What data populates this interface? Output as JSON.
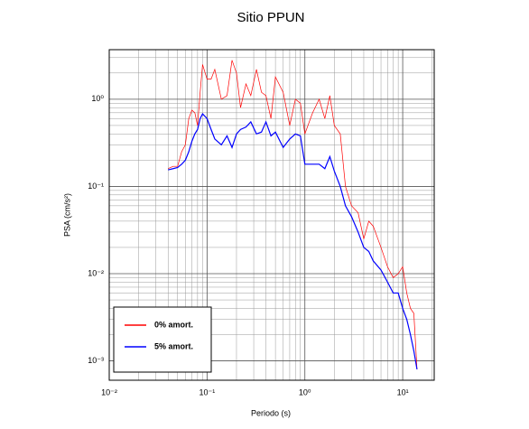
{
  "chart_data": {
    "type": "line",
    "title": "Sitio PPUN",
    "x_label": "Periodo (s)",
    "y_label": "PSA (cm/s²)",
    "log_x": true,
    "log_y": true,
    "grid": true,
    "minor_grid": true,
    "legend": "lower left",
    "xlim": [
      0.01,
      21
    ],
    "ylim": [
      0.0006,
      3.7
    ],
    "xticks": [
      {
        "value": 0.01,
        "label": "10⁻²"
      },
      {
        "value": 0.1,
        "label": "10⁻¹"
      },
      {
        "value": 1,
        "label": "10⁰"
      },
      {
        "value": 10,
        "label": "10¹"
      }
    ],
    "yticks": [
      {
        "value": 0.001,
        "label": "10⁻³"
      },
      {
        "value": 0.01,
        "label": "10⁻²"
      },
      {
        "value": 0.1,
        "label": "10⁻¹"
      },
      {
        "value": 1,
        "label": "10⁰"
      }
    ],
    "x": [
      0.04,
      0.045,
      0.05,
      0.055,
      0.06,
      0.065,
      0.07,
      0.075,
      0.08,
      0.085,
      0.09,
      0.1,
      0.11,
      0.12,
      0.14,
      0.16,
      0.18,
      0.2,
      0.22,
      0.25,
      0.28,
      0.32,
      0.36,
      0.4,
      0.45,
      0.5,
      0.6,
      0.7,
      0.8,
      0.9,
      1.0,
      1.2,
      1.4,
      1.6,
      1.8,
      2.0,
      2.3,
      2.6,
      3.0,
      3.5,
      4.0,
      4.5,
      5.0,
      6.0,
      7.0,
      8.0,
      9.0,
      10,
      11,
      12,
      13,
      14
    ],
    "series": [
      {
        "name": "0% amort.",
        "color": "#ff0000",
        "values": [
          0.16,
          0.17,
          0.17,
          0.25,
          0.3,
          0.6,
          0.75,
          0.7,
          0.5,
          1.2,
          2.5,
          1.7,
          1.7,
          2.2,
          1.0,
          1.1,
          2.8,
          2.0,
          0.8,
          1.5,
          1.1,
          2.2,
          1.2,
          1.1,
          0.6,
          1.8,
          1.2,
          0.5,
          1.0,
          0.9,
          0.4,
          0.7,
          1.0,
          0.6,
          1.1,
          0.5,
          0.4,
          0.1,
          0.06,
          0.05,
          0.025,
          0.04,
          0.035,
          0.02,
          0.012,
          0.009,
          0.01,
          0.012,
          0.006,
          0.004,
          0.0035,
          0.0008
        ]
      },
      {
        "name": "5% amort.",
        "color": "#0000ff",
        "values": [
          0.155,
          0.16,
          0.165,
          0.18,
          0.2,
          0.25,
          0.33,
          0.4,
          0.45,
          0.6,
          0.68,
          0.6,
          0.45,
          0.35,
          0.3,
          0.38,
          0.28,
          0.4,
          0.45,
          0.48,
          0.55,
          0.4,
          0.42,
          0.55,
          0.38,
          0.42,
          0.28,
          0.35,
          0.4,
          0.38,
          0.18,
          0.18,
          0.18,
          0.16,
          0.22,
          0.15,
          0.1,
          0.06,
          0.045,
          0.03,
          0.02,
          0.018,
          0.014,
          0.011,
          0.008,
          0.006,
          0.006,
          0.004,
          0.003,
          0.002,
          0.0013,
          0.0008
        ]
      }
    ]
  }
}
